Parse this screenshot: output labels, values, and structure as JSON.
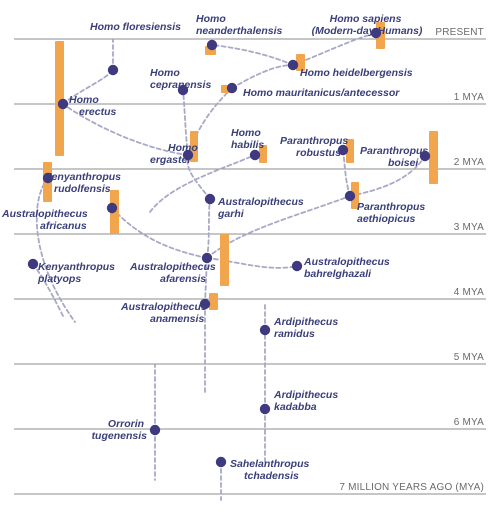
{
  "timescale": {
    "present": "PRESENT",
    "mya1": "1 MYA",
    "mya2": "2 MYA",
    "mya3": "3 MYA",
    "mya4": "4 MYA",
    "mya5": "5 MYA",
    "mya6": "6 MYA",
    "mya7": "7 MILLION YEARS AGO (MYA)"
  },
  "species": {
    "homo_floresiensis": [
      "Homo floresiensis"
    ],
    "homo_neanderthalensis": [
      "Homo",
      "neanderthalensis"
    ],
    "homo_sapiens": [
      "Homo sapiens",
      "(Modern-day Humans)"
    ],
    "homo_heidelbergensis": [
      "Homo heidelbergensis"
    ],
    "homo_cepranensis": [
      "Homo",
      "cepranensis"
    ],
    "homo_mauritanicus": [
      "Homo mauritanicus/antecessor"
    ],
    "homo_erectus": [
      "Homo",
      "erectus"
    ],
    "homo_ergaster": [
      "Homo",
      "ergaster"
    ],
    "homo_habilis": [
      "Homo",
      "habilis"
    ],
    "paranthropus_robustus": [
      "Paranthropus",
      "robustus"
    ],
    "paranthropus_boisei": [
      "Paranthropus",
      "boisei"
    ],
    "kenyanthropus_rudolfensis": [
      "Kenyanthropus",
      "rudolfensis"
    ],
    "australopithecus_africanus": [
      "Australopithecus",
      "africanus"
    ],
    "australopithecus_garhi": [
      "Australopithecus",
      "garhi"
    ],
    "paranthropus_aethiopicus": [
      "Paranthropus",
      "aethiopicus"
    ],
    "kenyanthropus_platyops": [
      "Kenyanthropus",
      "platyops"
    ],
    "australopithecus_afarensis": [
      "Australopithecus",
      "afarensis"
    ],
    "australopithecus_bahrelghazali": [
      "Australopithecus",
      "bahrelghazali"
    ],
    "australopithecus_anamensis": [
      "Australopithecus",
      "anamensis"
    ],
    "ardipithecus_ramidus": [
      "Ardipithecus",
      "ramidus"
    ],
    "ardipithecus_kadabba": [
      "Ardipithecus",
      "kadabba"
    ],
    "orrorin_tugenensis": [
      "Orrorin",
      "tugenensis"
    ],
    "sahelanthropus_tchadensis": [
      "Sahelanthropus",
      "tchadensis"
    ]
  },
  "colors": {
    "node": "#3f3a80",
    "bar": "#f1a54c",
    "branch": "#a7a9c6",
    "gridline": "#8c8c8c"
  }
}
